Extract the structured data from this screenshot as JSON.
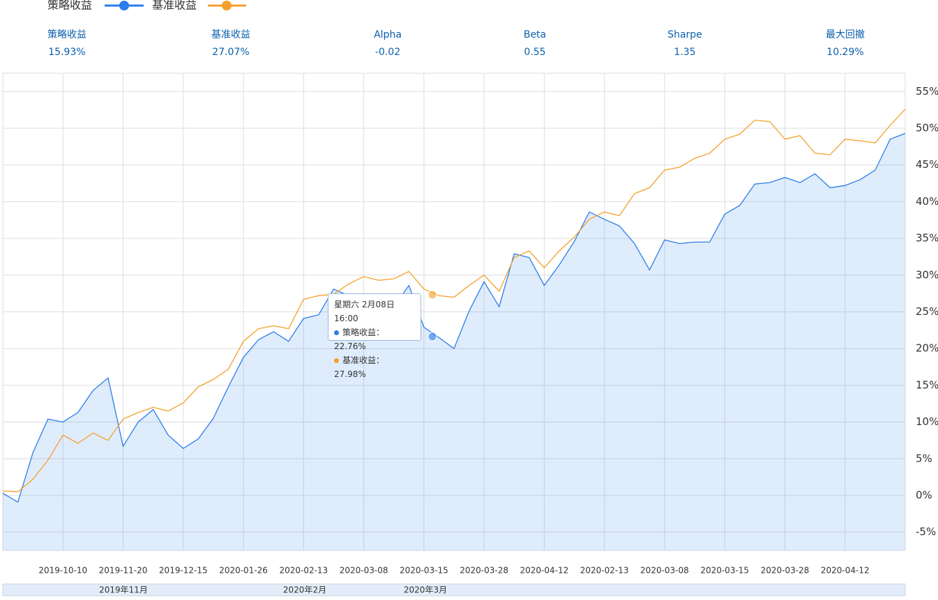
{
  "stats": [
    {
      "label": "策略收益",
      "value": "15.93%"
    },
    {
      "label": "基准收益",
      "value": "27.07%"
    },
    {
      "label": "Alpha",
      "value": "-0.02"
    },
    {
      "label": "Beta",
      "value": "0.55"
    },
    {
      "label": "Sharpe",
      "value": "1.35"
    },
    {
      "label": "最大回撤",
      "value": "10.29%"
    }
  ],
  "tooltip": {
    "title": "星期六  2月08日  16:00",
    "items": [
      {
        "name": "策略收益：",
        "value": "22.76%"
      },
      {
        "name": "基准收益：",
        "value": "27.98%"
      }
    ]
  },
  "navigator": {
    "labels": [
      "2019年11月",
      "2020年2月",
      "2020年3月"
    ]
  },
  "chart_data": {
    "type": "line",
    "categories": [
      null,
      null,
      null,
      null,
      "2019-10-10",
      null,
      null,
      null,
      "2019-11-20",
      null,
      null,
      null,
      "2019-12-15",
      null,
      null,
      null,
      "2020-01-26",
      null,
      null,
      null,
      "2020-02-13",
      null,
      null,
      null,
      "2020-03-08",
      null,
      null,
      null,
      "2020-03-15",
      null,
      null,
      null,
      "2020-03-28",
      null,
      null,
      null,
      "2020-04-12",
      null,
      null,
      null,
      "2020-02-13",
      null,
      null,
      null,
      "2020-03-08",
      null,
      null,
      null,
      "2020-03-15",
      null,
      null,
      null,
      "2020-03-28",
      null,
      null,
      null,
      "2020-04-12",
      null,
      null,
      null,
      null
    ],
    "series": [
      {
        "name": "策略收益",
        "color": "#2b7de9",
        "area": true,
        "values": [
          0.3,
          -0.9,
          5.8,
          10.4,
          10.0,
          11.3,
          14.3,
          16.0,
          6.7,
          10.0,
          11.7,
          8.2,
          6.4,
          7.7,
          10.5,
          14.8,
          18.8,
          21.2,
          22.3,
          21.0,
          24.1,
          24.6,
          28.1,
          27.2,
          25.7,
          26.7,
          25.7,
          28.6,
          22.9,
          21.5,
          20.0,
          25.1,
          29.1,
          25.7,
          32.9,
          32.4,
          28.6,
          31.4,
          34.6,
          38.6,
          37.6,
          36.7,
          34.3,
          30.7,
          34.8,
          34.3,
          34.5,
          34.5,
          38.3,
          39.5,
          42.4,
          42.6,
          43.3,
          42.6,
          43.8,
          41.9,
          42.2,
          43.0,
          44.3,
          48.5,
          49.3
        ]
      },
      {
        "name": "基准收益",
        "color": "#f5a02a",
        "area": false,
        "values": [
          0.6,
          0.5,
          2.2,
          4.8,
          8.2,
          7.1,
          8.5,
          7.5,
          10.4,
          11.3,
          12.0,
          11.5,
          12.6,
          14.8,
          15.8,
          17.2,
          21.0,
          22.7,
          23.1,
          22.7,
          26.7,
          27.2,
          27.4,
          28.8,
          29.8,
          29.3,
          29.5,
          30.5,
          28.1,
          27.2,
          27.0,
          28.6,
          30.0,
          27.8,
          32.4,
          33.3,
          31.0,
          33.3,
          35.2,
          37.6,
          38.6,
          38.1,
          41.1,
          41.9,
          44.3,
          44.7,
          45.9,
          46.6,
          48.5,
          49.2,
          51.1,
          50.9,
          48.5,
          49.0,
          46.6,
          46.4,
          48.5,
          48.3,
          48.0,
          50.4,
          52.6
        ]
      }
    ],
    "ylim": [
      -7.5,
      57.5
    ],
    "yticks": [
      {
        "value": -5,
        "label": "-5%"
      },
      {
        "value": 0,
        "label": "0%"
      },
      {
        "value": 5,
        "label": "5%"
      },
      {
        "value": 10,
        "label": "10%"
      },
      {
        "value": 15,
        "label": "15%"
      },
      {
        "value": 20,
        "label": "20%"
      },
      {
        "value": 25,
        "label": "25%"
      },
      {
        "value": 30,
        "label": "30%"
      },
      {
        "value": 35,
        "label": "35%"
      },
      {
        "value": 40,
        "label": "40%"
      },
      {
        "value": 45,
        "label": "45%"
      },
      {
        "value": 50,
        "label": "50%"
      },
      {
        "value": 55,
        "label": "55%"
      }
    ],
    "grid": true
  }
}
